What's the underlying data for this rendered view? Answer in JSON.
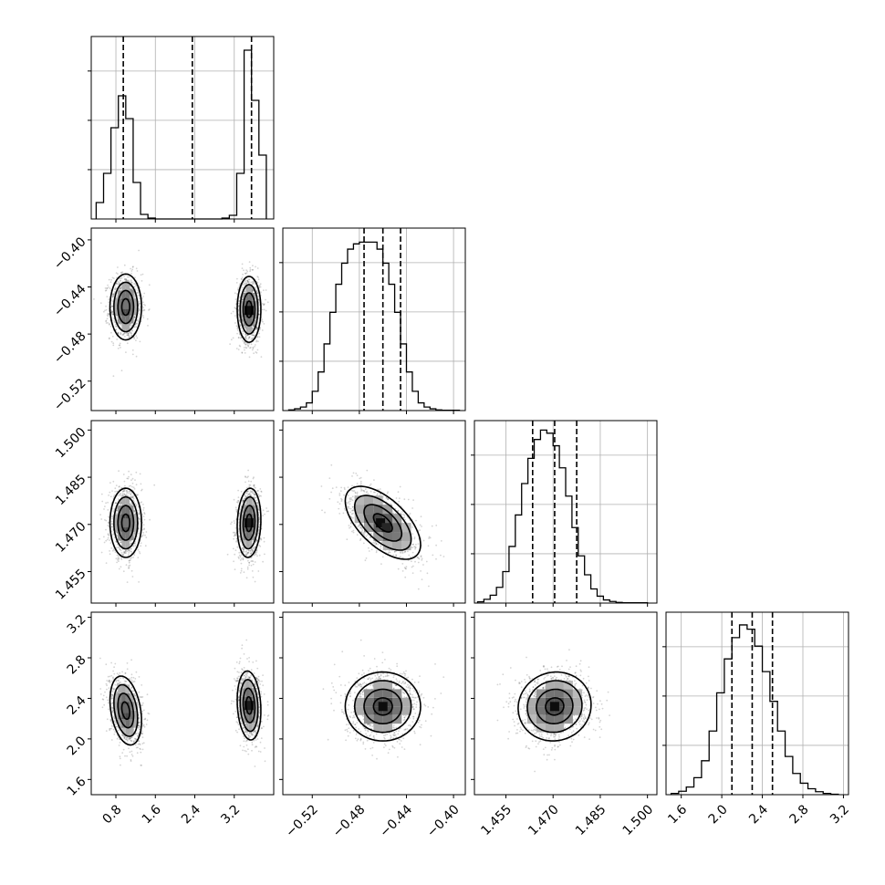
{
  "chart_data": {
    "type": "corner",
    "grid": true,
    "parameters": [
      {
        "range": [
          0.3,
          4.0
        ],
        "ticks": [
          "0.8",
          "1.6",
          "2.4",
          "3.2"
        ],
        "tick_values": [
          0.8,
          1.6,
          2.4,
          3.2
        ],
        "quantiles": [
          0.95,
          2.35,
          3.55
        ]
      },
      {
        "range": [
          -0.545,
          -0.39
        ],
        "ticks": [
          "−0.52",
          "−0.48",
          "−0.44",
          "−0.40"
        ],
        "tick_values": [
          -0.52,
          -0.48,
          -0.44,
          -0.4
        ],
        "quantiles": [
          -0.476,
          -0.46,
          -0.445
        ]
      },
      {
        "range": [
          1.445,
          1.503
        ],
        "ticks": [
          "1.455",
          "1.470",
          "1.485",
          "1.500"
        ],
        "tick_values": [
          1.455,
          1.47,
          1.485,
          1.5
        ],
        "quantiles": [
          1.4635,
          1.4705,
          1.4775
        ]
      },
      {
        "range": [
          1.45,
          3.25
        ],
        "ticks": [
          "1.6",
          "2.0",
          "2.4",
          "2.8",
          "3.2"
        ],
        "tick_values": [
          1.6,
          2.0,
          2.4,
          2.8,
          3.2
        ],
        "quantiles": [
          2.1,
          2.3,
          2.5
        ]
      }
    ],
    "histograms": [
      {
        "param": 0,
        "bin_edges": [
          0.4,
          0.55,
          0.7,
          0.85,
          1.0,
          1.15,
          1.3,
          1.45,
          1.6,
          1.75,
          1.9,
          2.05,
          2.2,
          2.35,
          2.5,
          2.65,
          2.8,
          2.95,
          3.1,
          3.25,
          3.4,
          3.55,
          3.7,
          3.85
        ],
        "counts": [
          1.8,
          5.0,
          10.0,
          13.5,
          11.0,
          4.0,
          0.5,
          0.1,
          0,
          0,
          0,
          0,
          0,
          0,
          0,
          0,
          0,
          0.1,
          0.4,
          5.0,
          18.5,
          13.0,
          7.0
        ],
        "ymax": 20
      },
      {
        "param": 1,
        "bin_edges": [
          -0.54,
          -0.535,
          -0.53,
          -0.525,
          -0.52,
          -0.515,
          -0.51,
          -0.505,
          -0.5,
          -0.495,
          -0.49,
          -0.485,
          -0.48,
          -0.475,
          -0.47,
          -0.465,
          -0.46,
          -0.455,
          -0.45,
          -0.445,
          -0.44,
          -0.435,
          -0.43,
          -0.425,
          -0.42,
          -0.415,
          -0.41,
          -0.405,
          -0.4,
          -0.395
        ],
        "counts": [
          0.02,
          0.05,
          0.1,
          0.22,
          0.55,
          1.1,
          1.9,
          2.8,
          3.6,
          4.2,
          4.6,
          4.75,
          4.8,
          4.8,
          4.8,
          4.6,
          4.2,
          3.6,
          2.8,
          1.9,
          1.1,
          0.55,
          0.22,
          0.1,
          0.05,
          0.02,
          0.01,
          0.01,
          0.01
        ],
        "ymax": 5.2
      },
      {
        "param": 2,
        "bin_edges": [
          1.446,
          1.448,
          1.45,
          1.452,
          1.454,
          1.456,
          1.458,
          1.46,
          1.462,
          1.464,
          1.466,
          1.468,
          1.47,
          1.472,
          1.474,
          1.476,
          1.478,
          1.48,
          1.482,
          1.484,
          1.486,
          1.488,
          1.49,
          1.492,
          1.494,
          1.496,
          1.498,
          1.5
        ],
        "counts": [
          0.04,
          0.12,
          0.25,
          0.5,
          1.0,
          1.8,
          2.8,
          3.8,
          4.6,
          5.2,
          5.5,
          5.4,
          5.0,
          4.3,
          3.4,
          2.4,
          1.5,
          0.9,
          0.45,
          0.22,
          0.1,
          0.05,
          0.02,
          0.01,
          0.01,
          0.01,
          0.01
        ],
        "ymax": 5.8
      },
      {
        "param": 3,
        "bin_edges": [
          1.5,
          1.575,
          1.65,
          1.725,
          1.8,
          1.875,
          1.95,
          2.025,
          2.1,
          2.175,
          2.25,
          2.325,
          2.4,
          2.475,
          2.55,
          2.625,
          2.7,
          2.775,
          2.85,
          2.925,
          3.0,
          3.075,
          3.15
        ],
        "counts": [
          0.03,
          0.08,
          0.18,
          0.4,
          0.8,
          1.5,
          2.4,
          3.2,
          3.7,
          4.0,
          3.9,
          3.5,
          2.9,
          2.2,
          1.5,
          0.9,
          0.5,
          0.27,
          0.14,
          0.07,
          0.03,
          0.01
        ],
        "ymax": 4.3
      }
    ],
    "pairs": [
      {
        "x": 0,
        "y": 1,
        "blobs": [
          {
            "mean": [
              1.0,
              -0.457
            ],
            "sd": [
              0.16,
              0.014
            ],
            "rho": 0.0,
            "weight": 0.5
          },
          {
            "mean": [
              3.5,
              -0.459
            ],
            "sd": [
              0.12,
              0.014
            ],
            "rho": 0.0,
            "weight": 0.5
          }
        ],
        "cells": [
          {
            "x": 3.5,
            "y": -0.46,
            "level": 0.95
          },
          {
            "x": 1.0,
            "y": -0.455,
            "level": 0.55
          }
        ]
      },
      {
        "x": 0,
        "y": 2,
        "blobs": [
          {
            "mean": [
              1.0,
              1.4705
            ],
            "sd": [
              0.16,
              0.0055
            ],
            "rho": 0.0,
            "weight": 0.5
          },
          {
            "mean": [
              3.5,
              1.4705
            ],
            "sd": [
              0.12,
              0.0055
            ],
            "rho": 0.1,
            "weight": 0.5
          }
        ],
        "cells": [
          {
            "x": 3.5,
            "y": 1.4705,
            "level": 0.9
          },
          {
            "x": 1.0,
            "y": 1.4705,
            "level": 0.55
          }
        ]
      },
      {
        "x": 0,
        "y": 3,
        "blobs": [
          {
            "mean": [
              1.0,
              2.28
            ],
            "sd": [
              0.16,
              0.17
            ],
            "rho": -0.3,
            "weight": 0.5
          },
          {
            "mean": [
              3.5,
              2.33
            ],
            "sd": [
              0.12,
              0.17
            ],
            "rho": -0.15,
            "weight": 0.5
          }
        ],
        "cells": [
          {
            "x": 3.5,
            "y": 2.33,
            "level": 0.9
          },
          {
            "x": 1.0,
            "y": 2.3,
            "level": 0.6
          }
        ]
      },
      {
        "x": 1,
        "y": 2,
        "blobs": [
          {
            "mean": [
              -0.46,
              1.4705
            ],
            "sd": [
              0.016,
              0.0058
            ],
            "rho": -0.6,
            "weight": 1.0
          }
        ],
        "cells": [
          {
            "x": -0.462,
            "y": 1.4705,
            "level": 0.95
          },
          {
            "x": -0.457,
            "y": 1.469,
            "level": 0.85
          }
        ]
      },
      {
        "x": 1,
        "y": 3,
        "blobs": [
          {
            "mean": [
              -0.46,
              2.32
            ],
            "sd": [
              0.016,
              0.17
            ],
            "rho": 0.0,
            "weight": 1.0
          }
        ],
        "cells": [
          {
            "x": -0.46,
            "y": 2.32,
            "level": 0.95
          }
        ]
      },
      {
        "x": 2,
        "y": 3,
        "blobs": [
          {
            "mean": [
              1.4705,
              2.32
            ],
            "sd": [
              0.0058,
              0.17
            ],
            "rho": 0.05,
            "weight": 1.0
          }
        ],
        "cells": [
          {
            "x": 1.4705,
            "y": 2.32,
            "level": 0.95
          }
        ]
      }
    ],
    "contour_levels_sigma": [
      0.5,
      1.0,
      1.5,
      2.0
    ]
  }
}
